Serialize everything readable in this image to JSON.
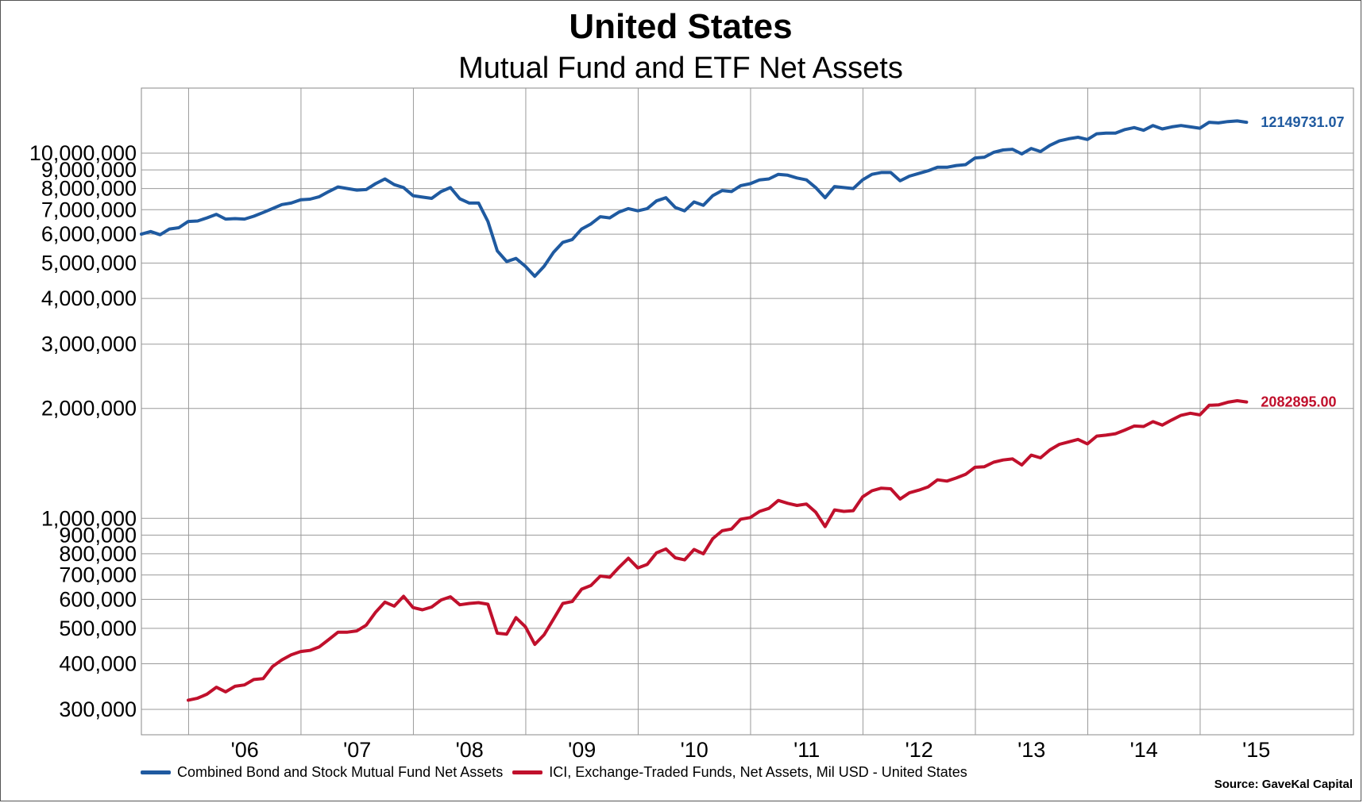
{
  "title": "United States",
  "subtitle": "Mutual Fund and ETF Net Assets",
  "source": "Source: GaveKal Capital",
  "chart_data": {
    "type": "line",
    "y_scale": "log",
    "ylim": [
      270000,
      16000000
    ],
    "y_ticks": [
      {
        "value": 300000,
        "label": "300,000"
      },
      {
        "value": 400000,
        "label": "400,000"
      },
      {
        "value": 500000,
        "label": "500,000"
      },
      {
        "value": 600000,
        "label": "600,000"
      },
      {
        "value": 700000,
        "label": "700,000"
      },
      {
        "value": 800000,
        "label": "800,000"
      },
      {
        "value": 900000,
        "label": "900,000"
      },
      {
        "value": 1000000,
        "label": "1,000,000"
      },
      {
        "value": 2000000,
        "label": "2,000,000"
      },
      {
        "value": 3000000,
        "label": "3,000,000"
      },
      {
        "value": 4000000,
        "label": "4,000,000"
      },
      {
        "value": 5000000,
        "label": "5,000,000"
      },
      {
        "value": 6000000,
        "label": "6,000,000"
      },
      {
        "value": 7000000,
        "label": "7,000,000"
      },
      {
        "value": 8000000,
        "label": "8,000,000"
      },
      {
        "value": 9000000,
        "label": "9,000,000"
      },
      {
        "value": 10000000,
        "label": "10,000,000"
      }
    ],
    "xlim": [
      2005.0,
      2016.0
    ],
    "x_gridlines": [
      2005.42,
      2006.42,
      2007.42,
      2008.42,
      2009.42,
      2010.42,
      2011.42,
      2012.42,
      2013.42,
      2014.42
    ],
    "x_ticks": [
      {
        "value": 2005.92,
        "label": "'06"
      },
      {
        "value": 2006.92,
        "label": "'07"
      },
      {
        "value": 2007.92,
        "label": "'08"
      },
      {
        "value": 2008.92,
        "label": "'09"
      },
      {
        "value": 2009.92,
        "label": "'10"
      },
      {
        "value": 2010.92,
        "label": "'11"
      },
      {
        "value": 2011.92,
        "label": "'12"
      },
      {
        "value": 2012.92,
        "label": "'13"
      },
      {
        "value": 2013.92,
        "label": "'14"
      },
      {
        "value": 2014.92,
        "label": "'15"
      }
    ],
    "grid": true,
    "legend_position": "bottom-left",
    "series": [
      {
        "name": "Combined Bond and Stock Mutual Fund Net Assets",
        "color": "#1f5aa0",
        "end_label": "12149731.07",
        "points": [
          [
            2005.0,
            6000000
          ],
          [
            2005.083,
            6100000
          ],
          [
            2005.167,
            5980000
          ],
          [
            2005.25,
            6200000
          ],
          [
            2005.333,
            6250000
          ],
          [
            2005.417,
            6500000
          ],
          [
            2005.5,
            6520000
          ],
          [
            2005.583,
            6650000
          ],
          [
            2005.667,
            6800000
          ],
          [
            2005.75,
            6600000
          ],
          [
            2005.833,
            6620000
          ],
          [
            2005.917,
            6600000
          ],
          [
            2006.0,
            6720000
          ],
          [
            2006.083,
            6880000
          ],
          [
            2006.167,
            7050000
          ],
          [
            2006.25,
            7230000
          ],
          [
            2006.333,
            7300000
          ],
          [
            2006.417,
            7450000
          ],
          [
            2006.5,
            7480000
          ],
          [
            2006.583,
            7600000
          ],
          [
            2006.667,
            7850000
          ],
          [
            2006.75,
            8080000
          ],
          [
            2006.833,
            8000000
          ],
          [
            2006.917,
            7920000
          ],
          [
            2007.0,
            7950000
          ],
          [
            2007.083,
            8250000
          ],
          [
            2007.167,
            8500000
          ],
          [
            2007.25,
            8200000
          ],
          [
            2007.333,
            8050000
          ],
          [
            2007.417,
            7650000
          ],
          [
            2007.5,
            7580000
          ],
          [
            2007.583,
            7520000
          ],
          [
            2007.667,
            7850000
          ],
          [
            2007.75,
            8050000
          ],
          [
            2007.833,
            7500000
          ],
          [
            2007.917,
            7300000
          ],
          [
            2008.0,
            7300000
          ],
          [
            2008.083,
            6500000
          ],
          [
            2008.167,
            5400000
          ],
          [
            2008.25,
            5050000
          ],
          [
            2008.333,
            5150000
          ],
          [
            2008.417,
            4900000
          ],
          [
            2008.5,
            4600000
          ],
          [
            2008.583,
            4900000
          ],
          [
            2008.667,
            5350000
          ],
          [
            2008.75,
            5700000
          ],
          [
            2008.833,
            5800000
          ],
          [
            2008.917,
            6200000
          ],
          [
            2009.0,
            6400000
          ],
          [
            2009.083,
            6700000
          ],
          [
            2009.167,
            6650000
          ],
          [
            2009.25,
            6900000
          ],
          [
            2009.333,
            7050000
          ],
          [
            2009.417,
            6950000
          ],
          [
            2009.5,
            7050000
          ],
          [
            2009.583,
            7400000
          ],
          [
            2009.667,
            7550000
          ],
          [
            2009.75,
            7100000
          ],
          [
            2009.833,
            6950000
          ],
          [
            2009.917,
            7350000
          ],
          [
            2010.0,
            7200000
          ],
          [
            2010.083,
            7650000
          ],
          [
            2010.167,
            7900000
          ],
          [
            2010.25,
            7850000
          ],
          [
            2010.333,
            8150000
          ],
          [
            2010.417,
            8250000
          ],
          [
            2010.5,
            8450000
          ],
          [
            2010.583,
            8500000
          ],
          [
            2010.667,
            8750000
          ],
          [
            2010.75,
            8700000
          ],
          [
            2010.833,
            8550000
          ],
          [
            2010.917,
            8450000
          ],
          [
            2011.0,
            8050000
          ],
          [
            2011.083,
            7550000
          ],
          [
            2011.167,
            8100000
          ],
          [
            2011.25,
            8050000
          ],
          [
            2011.333,
            8000000
          ],
          [
            2011.417,
            8450000
          ],
          [
            2011.5,
            8750000
          ],
          [
            2011.583,
            8850000
          ],
          [
            2011.667,
            8850000
          ],
          [
            2011.75,
            8400000
          ],
          [
            2011.833,
            8650000
          ],
          [
            2011.917,
            8800000
          ],
          [
            2012.0,
            8950000
          ],
          [
            2012.083,
            9150000
          ],
          [
            2012.167,
            9150000
          ],
          [
            2012.25,
            9250000
          ],
          [
            2012.333,
            9300000
          ],
          [
            2012.417,
            9700000
          ],
          [
            2012.5,
            9750000
          ],
          [
            2012.583,
            10050000
          ],
          [
            2012.667,
            10200000
          ],
          [
            2012.75,
            10250000
          ],
          [
            2012.833,
            9950000
          ],
          [
            2012.917,
            10300000
          ],
          [
            2013.0,
            10100000
          ],
          [
            2013.083,
            10500000
          ],
          [
            2013.167,
            10800000
          ],
          [
            2013.25,
            10950000
          ],
          [
            2013.333,
            11050000
          ],
          [
            2013.417,
            10900000
          ],
          [
            2013.5,
            11300000
          ],
          [
            2013.583,
            11350000
          ],
          [
            2013.667,
            11350000
          ],
          [
            2013.75,
            11600000
          ],
          [
            2013.833,
            11750000
          ],
          [
            2013.917,
            11550000
          ],
          [
            2014.0,
            11900000
          ],
          [
            2014.083,
            11650000
          ],
          [
            2014.167,
            11800000
          ],
          [
            2014.25,
            11900000
          ],
          [
            2014.333,
            11800000
          ],
          [
            2014.417,
            11700000
          ],
          [
            2014.5,
            12150000
          ],
          [
            2014.583,
            12100000
          ],
          [
            2014.667,
            12200000
          ],
          [
            2014.75,
            12250000
          ],
          [
            2014.833,
            12149731
          ]
        ]
      },
      {
        "name": "ICI, Exchange-Traded Funds, Net Assets, Mil USD - United States",
        "color": "#c0102c",
        "end_label": "2082895.00",
        "points": [
          [
            2005.417,
            318000
          ],
          [
            2005.5,
            322000
          ],
          [
            2005.583,
            330000
          ],
          [
            2005.667,
            345000
          ],
          [
            2005.75,
            335000
          ],
          [
            2005.833,
            347000
          ],
          [
            2005.917,
            350000
          ],
          [
            2006.0,
            362000
          ],
          [
            2006.083,
            364000
          ],
          [
            2006.167,
            393000
          ],
          [
            2006.25,
            410000
          ],
          [
            2006.333,
            423000
          ],
          [
            2006.417,
            432000
          ],
          [
            2006.5,
            435000
          ],
          [
            2006.583,
            445000
          ],
          [
            2006.667,
            466000
          ],
          [
            2006.75,
            488000
          ],
          [
            2006.833,
            488000
          ],
          [
            2006.917,
            492000
          ],
          [
            2007.0,
            510000
          ],
          [
            2007.083,
            553000
          ],
          [
            2007.167,
            590000
          ],
          [
            2007.25,
            575000
          ],
          [
            2007.333,
            612000
          ],
          [
            2007.417,
            570000
          ],
          [
            2007.5,
            562000
          ],
          [
            2007.583,
            572000
          ],
          [
            2007.667,
            598000
          ],
          [
            2007.75,
            610000
          ],
          [
            2007.833,
            580000
          ],
          [
            2007.917,
            585000
          ],
          [
            2008.0,
            588000
          ],
          [
            2008.083,
            582000
          ],
          [
            2008.167,
            485000
          ],
          [
            2008.25,
            482000
          ],
          [
            2008.333,
            535000
          ],
          [
            2008.417,
            505000
          ],
          [
            2008.5,
            452000
          ],
          [
            2008.583,
            480000
          ],
          [
            2008.667,
            530000
          ],
          [
            2008.75,
            585000
          ],
          [
            2008.833,
            592000
          ],
          [
            2008.917,
            640000
          ],
          [
            2009.0,
            655000
          ],
          [
            2009.083,
            695000
          ],
          [
            2009.167,
            690000
          ],
          [
            2009.25,
            735000
          ],
          [
            2009.333,
            778000
          ],
          [
            2009.417,
            732000
          ],
          [
            2009.5,
            748000
          ],
          [
            2009.583,
            805000
          ],
          [
            2009.667,
            825000
          ],
          [
            2009.75,
            780000
          ],
          [
            2009.833,
            770000
          ],
          [
            2009.917,
            822000
          ],
          [
            2010.0,
            800000
          ],
          [
            2010.083,
            880000
          ],
          [
            2010.167,
            925000
          ],
          [
            2010.25,
            935000
          ],
          [
            2010.333,
            995000
          ],
          [
            2010.417,
            1005000
          ],
          [
            2010.5,
            1045000
          ],
          [
            2010.583,
            1065000
          ],
          [
            2010.667,
            1120000
          ],
          [
            2010.75,
            1100000
          ],
          [
            2010.833,
            1085000
          ],
          [
            2010.917,
            1095000
          ],
          [
            2011.0,
            1040000
          ],
          [
            2011.083,
            950000
          ],
          [
            2011.167,
            1055000
          ],
          [
            2011.25,
            1045000
          ],
          [
            2011.333,
            1050000
          ],
          [
            2011.417,
            1145000
          ],
          [
            2011.5,
            1190000
          ],
          [
            2011.583,
            1210000
          ],
          [
            2011.667,
            1205000
          ],
          [
            2011.75,
            1130000
          ],
          [
            2011.833,
            1175000
          ],
          [
            2011.917,
            1195000
          ],
          [
            2012.0,
            1220000
          ],
          [
            2012.083,
            1275000
          ],
          [
            2012.167,
            1265000
          ],
          [
            2012.25,
            1290000
          ],
          [
            2012.333,
            1320000
          ],
          [
            2012.417,
            1380000
          ],
          [
            2012.5,
            1385000
          ],
          [
            2012.583,
            1425000
          ],
          [
            2012.667,
            1445000
          ],
          [
            2012.75,
            1455000
          ],
          [
            2012.833,
            1400000
          ],
          [
            2012.917,
            1490000
          ],
          [
            2013.0,
            1465000
          ],
          [
            2013.083,
            1540000
          ],
          [
            2013.167,
            1595000
          ],
          [
            2013.25,
            1620000
          ],
          [
            2013.333,
            1645000
          ],
          [
            2013.417,
            1600000
          ],
          [
            2013.5,
            1680000
          ],
          [
            2013.583,
            1690000
          ],
          [
            2013.667,
            1705000
          ],
          [
            2013.75,
            1745000
          ],
          [
            2013.833,
            1790000
          ],
          [
            2013.917,
            1785000
          ],
          [
            2014.0,
            1840000
          ],
          [
            2014.083,
            1800000
          ],
          [
            2014.167,
            1860000
          ],
          [
            2014.25,
            1915000
          ],
          [
            2014.333,
            1940000
          ],
          [
            2014.417,
            1920000
          ],
          [
            2014.5,
            2040000
          ],
          [
            2014.583,
            2045000
          ],
          [
            2014.667,
            2080000
          ],
          [
            2014.75,
            2100000
          ],
          [
            2014.833,
            2082895
          ]
        ]
      }
    ]
  }
}
